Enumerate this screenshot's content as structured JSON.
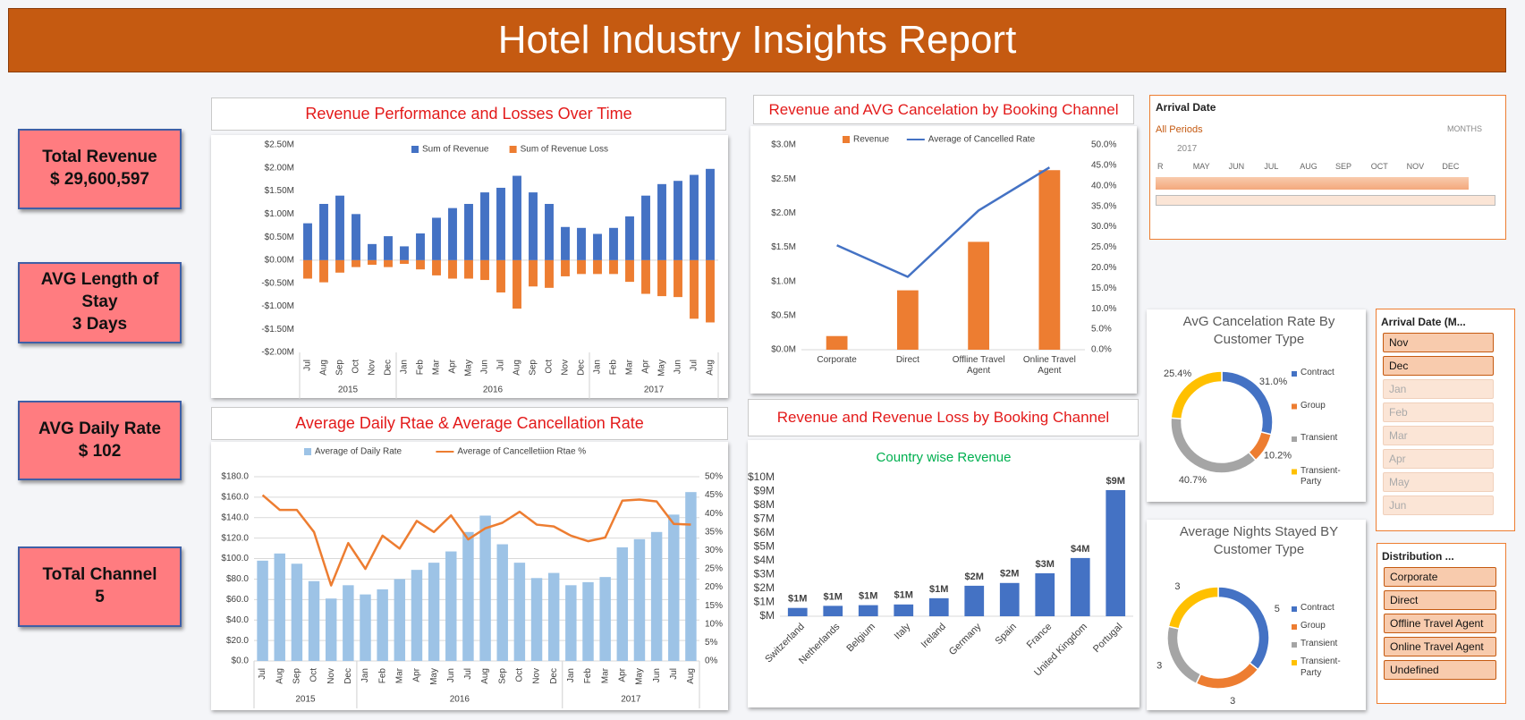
{
  "header": {
    "title": "Hotel Industry Insights Report"
  },
  "kpis": [
    {
      "label": "Total Revenue",
      "value": "$ 29,600,597"
    },
    {
      "label": "AVG Length of Stay",
      "value": "3 Days"
    },
    {
      "label": "AVG Daily Rate",
      "value": "$ 102"
    },
    {
      "label": "ToTal Channel",
      "value": "5"
    }
  ],
  "timeline": {
    "title": "Arrival Date",
    "period": "All Periods",
    "unit": "MONTHS",
    "year": "2017",
    "months": [
      "R",
      "MAY",
      "JUN",
      "JUL",
      "AUG",
      "SEP",
      "OCT",
      "NOV",
      "DEC"
    ]
  },
  "slicers": [
    {
      "title": "Arrival Date (M...",
      "items": [
        {
          "label": "Nov",
          "selected": true
        },
        {
          "label": "Dec",
          "selected": true
        },
        {
          "label": "Jan",
          "selected": false
        },
        {
          "label": "Feb",
          "selected": false
        },
        {
          "label": "Mar",
          "selected": false
        },
        {
          "label": "Apr",
          "selected": false
        },
        {
          "label": "May",
          "selected": false
        },
        {
          "label": "Jun",
          "selected": false
        }
      ]
    },
    {
      "title": "Distribution ...",
      "items": [
        {
          "label": "Corporate",
          "selected": true
        },
        {
          "label": "Direct",
          "selected": true
        },
        {
          "label": "Offline Travel Agent",
          "selected": true
        },
        {
          "label": "Online Travel Agent",
          "selected": true
        },
        {
          "label": "Undefined",
          "selected": true
        }
      ]
    }
  ],
  "chart_data": [
    {
      "type": "bar",
      "title": "Revenue Performance and Losses Over Time",
      "grid": false,
      "category_groups": [
        {
          "label": "2015",
          "categories": [
            "Jul",
            "Aug",
            "Sep",
            "Oct",
            "Nov",
            "Dec"
          ]
        },
        {
          "label": "2016",
          "categories": [
            "Jan",
            "Feb",
            "Mar",
            "Apr",
            "May",
            "Jun",
            "Jul",
            "Aug",
            "Sep",
            "Oct",
            "Nov",
            "Dec"
          ]
        },
        {
          "label": "2017",
          "categories": [
            "Jan",
            "Feb",
            "Mar",
            "Apr",
            "May",
            "Jun",
            "Jul",
            "Aug"
          ]
        }
      ],
      "series": [
        {
          "name": "Sum of Revenue",
          "color": "#4472c4",
          "mark": "bar",
          "values": [
            800000,
            1220000,
            1400000,
            1000000,
            350000,
            520000,
            300000,
            580000,
            920000,
            1130000,
            1220000,
            1470000,
            1570000,
            1830000,
            1470000,
            1220000,
            720000,
            700000,
            570000,
            700000,
            950000,
            1400000,
            1650000,
            1720000,
            1850000,
            1980000
          ]
        },
        {
          "name": "Sum of Revenue Loss",
          "color": "#ed7d31",
          "mark": "bar",
          "values": [
            -400000,
            -480000,
            -270000,
            -150000,
            -100000,
            -150000,
            -80000,
            -200000,
            -330000,
            -400000,
            -400000,
            -430000,
            -700000,
            -1050000,
            -570000,
            -600000,
            -350000,
            -300000,
            -300000,
            -300000,
            -470000,
            -730000,
            -780000,
            -800000,
            -1270000,
            -1350000
          ]
        }
      ],
      "ylim": [
        -2000000,
        2500000
      ],
      "yticks": [
        {
          "value": 2500000,
          "label": "$2.50M"
        },
        {
          "value": 2000000,
          "label": "$2.00M"
        },
        {
          "value": 1500000,
          "label": "$1.50M"
        },
        {
          "value": 1000000,
          "label": "$1.00M"
        },
        {
          "value": 500000,
          "label": "$0.50M"
        },
        {
          "value": 0,
          "label": "$0.00M"
        },
        {
          "value": -500000,
          "label": "-$0.50M"
        },
        {
          "value": -1000000,
          "label": "-$1.00M"
        },
        {
          "value": -1500000,
          "label": "-$1.50M"
        },
        {
          "value": -2000000,
          "label": "-$2.00M"
        }
      ]
    },
    {
      "type": "combo",
      "title": "Average Daily Rtae & Average Cancellation Rate",
      "grid": true,
      "category_groups": [
        {
          "label": "2015",
          "categories": [
            "Jul",
            "Aug",
            "Sep",
            "Oct",
            "Nov",
            "Dec"
          ]
        },
        {
          "label": "2016",
          "categories": [
            "Jan",
            "Feb",
            "Mar",
            "Apr",
            "May",
            "Jun",
            "Jul",
            "Aug",
            "Sep",
            "Oct",
            "Nov",
            "Dec"
          ]
        },
        {
          "label": "2017",
          "categories": [
            "Jan",
            "Feb",
            "Mar",
            "Apr",
            "May",
            "Jun",
            "Jul",
            "Aug"
          ]
        }
      ],
      "series": [
        {
          "name": "Average of Daily Rate",
          "color": "#9dc3e6",
          "mark": "bar",
          "axis": "y",
          "values": [
            98,
            105,
            95,
            78,
            61,
            74,
            65,
            70,
            80,
            89,
            96,
            107,
            126,
            142,
            114,
            96,
            81,
            86,
            74,
            77,
            82,
            111,
            119,
            126,
            143,
            165
          ]
        },
        {
          "name": "Average of Cancelletiion Rtae %",
          "color": "#ed7d31",
          "mark": "line",
          "axis": "y2",
          "values": [
            45,
            41,
            41,
            35,
            20.5,
            32,
            25,
            34,
            30.5,
            38,
            35,
            39.5,
            33,
            36,
            37.5,
            40.5,
            37,
            36.5,
            34,
            32.5,
            33.5,
            43.5,
            43.8,
            43.3,
            37.2,
            37
          ]
        }
      ],
      "ylim": [
        0,
        180
      ],
      "yticks": [
        {
          "value": 0,
          "label": "$0.0"
        },
        {
          "value": 20,
          "label": "$20.0"
        },
        {
          "value": 40,
          "label": "$40.0"
        },
        {
          "value": 60,
          "label": "$60.0"
        },
        {
          "value": 80,
          "label": "$80.0"
        },
        {
          "value": 100,
          "label": "$100.0"
        },
        {
          "value": 120,
          "label": "$120.0"
        },
        {
          "value": 140,
          "label": "$140.0"
        },
        {
          "value": 160,
          "label": "$160.0"
        },
        {
          "value": 180,
          "label": "$180.0"
        }
      ],
      "y2lim": [
        0,
        50
      ],
      "y2ticks": [
        {
          "value": 0,
          "label": "0%"
        },
        {
          "value": 5,
          "label": "5%"
        },
        {
          "value": 10,
          "label": "10%"
        },
        {
          "value": 15,
          "label": "15%"
        },
        {
          "value": 20,
          "label": "20%"
        },
        {
          "value": 25,
          "label": "25%"
        },
        {
          "value": 30,
          "label": "30%"
        },
        {
          "value": 35,
          "label": "35%"
        },
        {
          "value": 40,
          "label": "40%"
        },
        {
          "value": 45,
          "label": "45%"
        },
        {
          "value": 50,
          "label": "50%"
        }
      ]
    },
    {
      "type": "combo",
      "title": "Revenue and AVG Cancelation by Booking Channel",
      "grid": false,
      "categories": [
        "Corporate",
        "Direct",
        "Offline Travel Agent",
        "Online Travel Agent"
      ],
      "series": [
        {
          "name": "Revenue",
          "color": "#ed7d31",
          "mark": "bar",
          "axis": "y",
          "values": [
            200000,
            870000,
            1580000,
            2630000
          ]
        },
        {
          "name": "Average of Cancelled Rate",
          "color": "#4472c4",
          "mark": "line",
          "axis": "y2",
          "values": [
            25.5,
            17.8,
            34,
            44.5
          ]
        }
      ],
      "ylim": [
        0,
        3000000
      ],
      "yticks": [
        {
          "value": 0,
          "label": "$0.0M"
        },
        {
          "value": 500000,
          "label": "$0.5M"
        },
        {
          "value": 1000000,
          "label": "$1.0M"
        },
        {
          "value": 1500000,
          "label": "$1.5M"
        },
        {
          "value": 2000000,
          "label": "$2.0M"
        },
        {
          "value": 2500000,
          "label": "$2.5M"
        },
        {
          "value": 3000000,
          "label": "$3.0M"
        }
      ],
      "y2lim": [
        0,
        50
      ],
      "y2ticks": [
        {
          "value": 0,
          "label": "0.0%"
        },
        {
          "value": 5,
          "label": "5.0%"
        },
        {
          "value": 10,
          "label": "10.0%"
        },
        {
          "value": 15,
          "label": "15.0%"
        },
        {
          "value": 20,
          "label": "20.0%"
        },
        {
          "value": 25,
          "label": "25.0%"
        },
        {
          "value": 30,
          "label": "30.0%"
        },
        {
          "value": 35,
          "label": "35.0%"
        },
        {
          "value": 40,
          "label": "40.0%"
        },
        {
          "value": 45,
          "label": "45.0%"
        },
        {
          "value": 50,
          "label": "50.0%"
        }
      ]
    },
    {
      "type": "bar",
      "title": "Revenue and Revenue Loss by Booking Channel",
      "subtitle": "Country wise Revenue",
      "grid": false,
      "categories": [
        "Switzerland",
        "Netherlands",
        "Belgium",
        "Italy",
        "Ireland",
        "Germany",
        "Spain",
        "France",
        "United Kingdom",
        "Portugal"
      ],
      "values": [
        600000,
        750000,
        800000,
        850000,
        1300000,
        2200000,
        2400000,
        3100000,
        4200000,
        9100000
      ],
      "value_labels": [
        "$1M",
        "$1M",
        "$1M",
        "$1M",
        "$1M",
        "$2M",
        "$2M",
        "$3M",
        "$4M",
        "$9M"
      ],
      "color": "#4472c4",
      "ylim": [
        0,
        10000000
      ],
      "yticks": [
        {
          "value": 0,
          "label": "$M"
        },
        {
          "value": 1000000,
          "label": "$1M"
        },
        {
          "value": 2000000,
          "label": "$2M"
        },
        {
          "value": 3000000,
          "label": "$3M"
        },
        {
          "value": 4000000,
          "label": "$4M"
        },
        {
          "value": 5000000,
          "label": "$5M"
        },
        {
          "value": 6000000,
          "label": "$6M"
        },
        {
          "value": 7000000,
          "label": "$7M"
        },
        {
          "value": 8000000,
          "label": "$8M"
        },
        {
          "value": 9000000,
          "label": "$9M"
        },
        {
          "value": 10000000,
          "label": "$10M"
        }
      ]
    },
    {
      "type": "pie",
      "title": "AvG Cancelation Rate By Customer Type",
      "categories": [
        "Contract",
        "Group",
        "Transient",
        "Transient-Party"
      ],
      "values": [
        31.0,
        10.2,
        40.7,
        25.4
      ],
      "value_labels": [
        "31.0%",
        "10.2%",
        "40.7%",
        "25.4%"
      ],
      "colors": [
        "#4472c4",
        "#ed7d31",
        "#a5a5a5",
        "#ffc000"
      ]
    },
    {
      "type": "pie",
      "title": "Average Nights Stayed BY Customer Type",
      "categories": [
        "Contract",
        "Group",
        "Transient",
        "Transient-Party"
      ],
      "values": [
        5,
        3,
        3,
        3
      ],
      "colors": [
        "#4472c4",
        "#ed7d31",
        "#a5a5a5",
        "#ffc000"
      ]
    }
  ]
}
